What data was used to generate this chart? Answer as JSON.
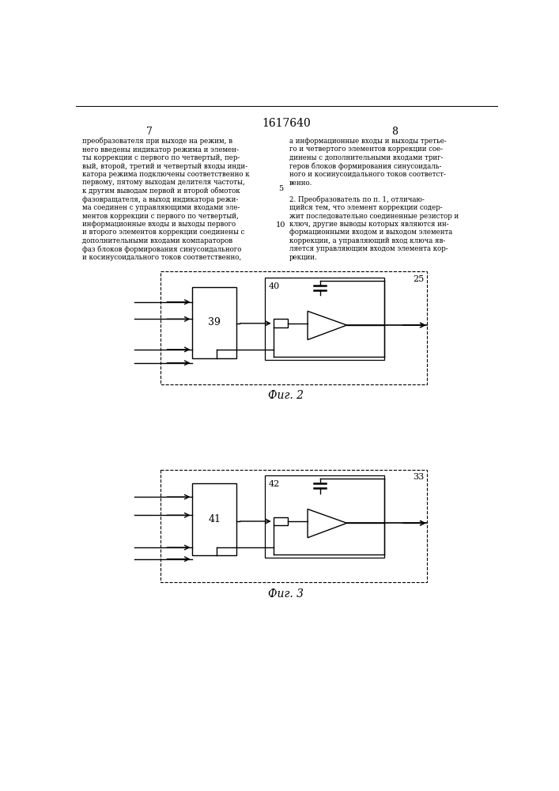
{
  "title": "1617640",
  "page_left": "7",
  "page_right": "8",
  "text_left_col": "преобразователя при выходе на режим, в\nнего введены индикатор режима и элемен-\nты коррекции с первого по четвертый, пер-\nвый, второй, третий и четвертый входы инди-\nкатора режима подключены соответственно к\nпервому, пятому выходам делителя частоты,\nк другим выводам первой и второй обмоток\nфазовращателя, а выход индикатора режи-\nма соединен с управляющими входами эле-\nментов коррекции с первого по четвертый,\nинформационные входы и выходы первого\nи второго элементов коррекции соединены с\nдополнительными входами компараторов\nфаз блоков формирования синусоидального\nи косинусоидального токов соответственно,",
  "text_right_col": "а информационные входы и выходы третье-\nго и четвертого элементов коррекции сое-\nдинены с дополнительными входами триг-\nгеров блоков формирования синусоидаль-\nного и косинусоидального токов соответст-\nвенно.\n\n2. Преобразователь по п. 1, отличаю-\nщийся тем, что элемент коррекции содер-\nжит последовательно соединенные резистор и\nключ, другие выводы которых являются ин-\nформационными входом и выходом элемента\nкоррекции, а управляющий вход ключа яв-\nляется управляющим входом элемента кор-\nрекции.",
  "fig2_label": "Фиг. 2",
  "fig3_label": "Фиг. 3",
  "fig2_box_label": "25",
  "fig2_inner_label": "40",
  "fig2_block_label": "39",
  "fig3_box_label": "33",
  "fig3_inner_label": "42",
  "fig3_block_label": "41",
  "line_number": "5",
  "line_number2": "10",
  "bg_color": "#ffffff",
  "text_color": "#000000",
  "line_color": "#000000"
}
